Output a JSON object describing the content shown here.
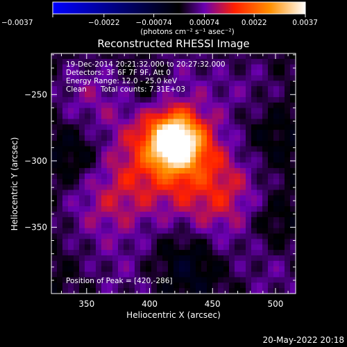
{
  "chart_data": {
    "type": "heatmap",
    "title": "Reconstructed RHESSI Image",
    "xlabel": "Heliocentric X (arcsec)",
    "ylabel": "Heliocentric Y (arcsec)",
    "xlim": [
      322,
      516
    ],
    "ylim": [
      -400,
      -219
    ],
    "x_ticks": [
      350,
      400,
      450,
      500
    ],
    "y_ticks": [
      -250,
      -300,
      -350
    ],
    "x_tick_labels": [
      "350",
      "400",
      "450",
      "500"
    ],
    "y_tick_labels": [
      "−250",
      "−300",
      "−350"
    ],
    "colorbar": {
      "range": [
        -0.0037,
        0.0037
      ],
      "tick_labels": [
        "−0.0037",
        "−0.0022",
        "−0.00074",
        "0.00074",
        "0.0022",
        "0.0037"
      ],
      "unit_label": "(photons cm⁻² s⁻¹ asec⁻²)",
      "colormap": [
        "#0000ff",
        "#000000",
        "#6a00b0",
        "#ff2000",
        "#ff9000",
        "#ffffff"
      ]
    },
    "annotations": {
      "time": "19-Dec-2014 20:21:32.000 to 20:27:32.000",
      "detectors": "Detectors: 3F 6F 7F 9F, Att 0",
      "energy": "Energy Range: 12.0 - 25.0 keV",
      "clean": "Clean",
      "counts": "Total counts: 7.31E+03",
      "peak": "Position of Peak = [420,-286]"
    },
    "peak": [
      420,
      -286
    ],
    "peak_value": 0.0037,
    "sources": [
      {
        "x": 420,
        "y": -286,
        "amplitude": 0.0037,
        "sigma": 14
      },
      {
        "x": 395,
        "y": -300,
        "amplitude": 0.0012,
        "sigma": 32
      },
      {
        "x": 450,
        "y": -300,
        "amplitude": 0.0009,
        "sigma": 30
      },
      {
        "x": 460,
        "y": -335,
        "amplitude": 0.0008,
        "sigma": 28
      },
      {
        "x": 360,
        "y": -335,
        "amplitude": 0.0007,
        "sigma": 25
      },
      {
        "x": 350,
        "y": -250,
        "amplitude": 0.0007,
        "sigma": 22
      },
      {
        "x": 480,
        "y": -250,
        "amplitude": 0.0006,
        "sigma": 24
      },
      {
        "x": 420,
        "y": -235,
        "amplitude": 0.0005,
        "sigma": 22
      },
      {
        "x": 380,
        "y": -390,
        "amplitude": 0.0005,
        "sigma": 22
      },
      {
        "x": 500,
        "y": -390,
        "amplitude": 0.0005,
        "sigma": 22
      }
    ],
    "negative_regions": [
      {
        "x": 345,
        "y": -295,
        "amplitude": -0.0007,
        "sigma": 18
      },
      {
        "x": 485,
        "y": -280,
        "amplitude": -0.0007,
        "sigma": 22
      },
      {
        "x": 430,
        "y": -375,
        "amplitude": -0.0006,
        "sigma": 18
      },
      {
        "x": 400,
        "y": -245,
        "amplitude": -0.0005,
        "sigma": 14
      },
      {
        "x": 495,
        "y": -345,
        "amplitude": -0.0005,
        "sigma": 15
      }
    ]
  },
  "footer": {
    "date": "20-May-2022 20:18"
  }
}
